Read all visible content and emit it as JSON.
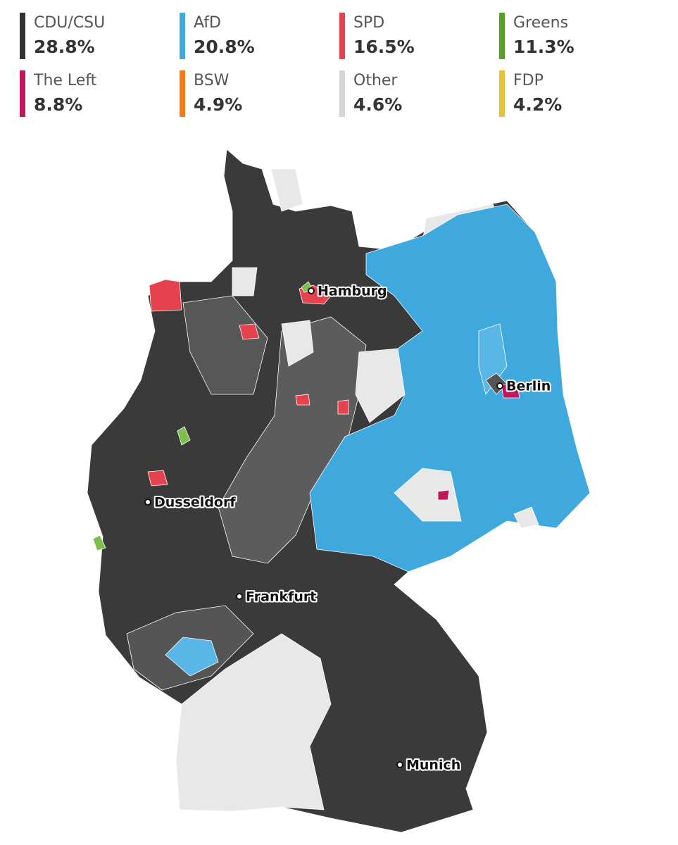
{
  "legend": [
    {
      "party": "CDU/CSU",
      "share": "28.8%",
      "color": "#333333"
    },
    {
      "party": "AfD",
      "share": "20.8%",
      "color": "#3fa9de"
    },
    {
      "party": "SPD",
      "share": "16.5%",
      "color": "#e6414e"
    },
    {
      "party": "Greens",
      "share": "11.3%",
      "color": "#5a9e2a"
    },
    {
      "party": "The Left",
      "share": "8.8%",
      "color": "#c0185f"
    },
    {
      "party": "BSW",
      "share": "4.9%",
      "color": "#f47b16"
    },
    {
      "party": "Other",
      "share": "4.6%",
      "color": "#d6d6d6"
    },
    {
      "party": "FDP",
      "share": "4.2%",
      "color": "#e6c23a"
    }
  ],
  "cities": [
    {
      "label": "Hamburg"
    },
    {
      "label": "Berlin"
    },
    {
      "label": "Dusseldorf"
    },
    {
      "label": "Frankfurt"
    },
    {
      "label": "Munich"
    }
  ]
}
